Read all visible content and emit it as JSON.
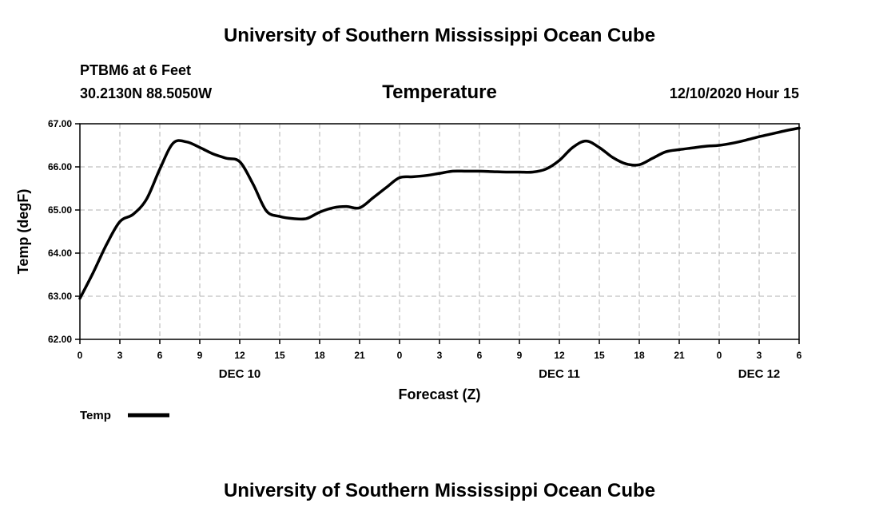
{
  "header": {
    "title": "University of Southern Mississippi Ocean Cube",
    "station": "PTBM6 at 6 Feet",
    "coordinates": "30.2130N 88.5050W",
    "timestamp": "12/10/2020 Hour 15"
  },
  "footer": {
    "title": "University of Southern Mississippi Ocean Cube"
  },
  "chart_data": {
    "type": "line",
    "title": "Temperature",
    "xlabel": "Forecast (Z)",
    "ylabel": "Temp (degF)",
    "xlim": [
      0,
      54
    ],
    "ylim": [
      62,
      67
    ],
    "grid": true,
    "y_ticks": [
      62,
      63,
      64,
      65,
      66,
      67
    ],
    "y_tick_labels": [
      "62.00",
      "63.00",
      "64.00",
      "65.00",
      "66.00",
      "67.00"
    ],
    "x_ticks": [
      0,
      3,
      6,
      9,
      12,
      15,
      18,
      21,
      24,
      27,
      30,
      33,
      36,
      39,
      42,
      45,
      48,
      51,
      54
    ],
    "x_tick_labels": [
      "0",
      "3",
      "6",
      "9",
      "12",
      "15",
      "18",
      "21",
      "0",
      "3",
      "6",
      "9",
      "12",
      "15",
      "18",
      "21",
      "0",
      "3",
      "6"
    ],
    "date_labels": [
      {
        "x": 12,
        "label": "DEC 10"
      },
      {
        "x": 36,
        "label": "DEC 11"
      },
      {
        "x": 51,
        "label": "DEC 12"
      }
    ],
    "legend": {
      "label": "Temp",
      "placement": "bottom-left"
    },
    "series": [
      {
        "name": "Temp",
        "color": "#000000",
        "x": [
          0,
          1,
          2,
          3,
          4,
          5,
          6,
          7,
          8,
          9,
          10,
          11,
          12,
          13,
          14,
          15,
          16,
          17,
          18,
          19,
          20,
          21,
          22,
          23,
          24,
          25,
          26,
          27,
          28,
          29,
          30,
          31,
          32,
          33,
          34,
          35,
          36,
          37,
          38,
          39,
          40,
          41,
          42,
          43,
          44,
          45,
          46,
          47,
          48,
          49,
          50,
          51,
          52,
          53,
          54
        ],
        "values": [
          62.95,
          63.55,
          64.2,
          64.73,
          64.9,
          65.25,
          65.95,
          66.55,
          66.58,
          66.45,
          66.3,
          66.2,
          66.12,
          65.6,
          64.98,
          64.85,
          64.8,
          64.8,
          64.95,
          65.05,
          65.08,
          65.05,
          65.28,
          65.52,
          65.75,
          65.77,
          65.8,
          65.85,
          65.9,
          65.9,
          65.9,
          65.89,
          65.88,
          65.88,
          65.88,
          65.95,
          66.15,
          66.45,
          66.6,
          66.45,
          66.22,
          66.07,
          66.05,
          66.2,
          66.35,
          66.4,
          66.44,
          66.48,
          66.5,
          66.55,
          66.62,
          66.7,
          66.77,
          66.84,
          66.9
        ]
      }
    ]
  }
}
